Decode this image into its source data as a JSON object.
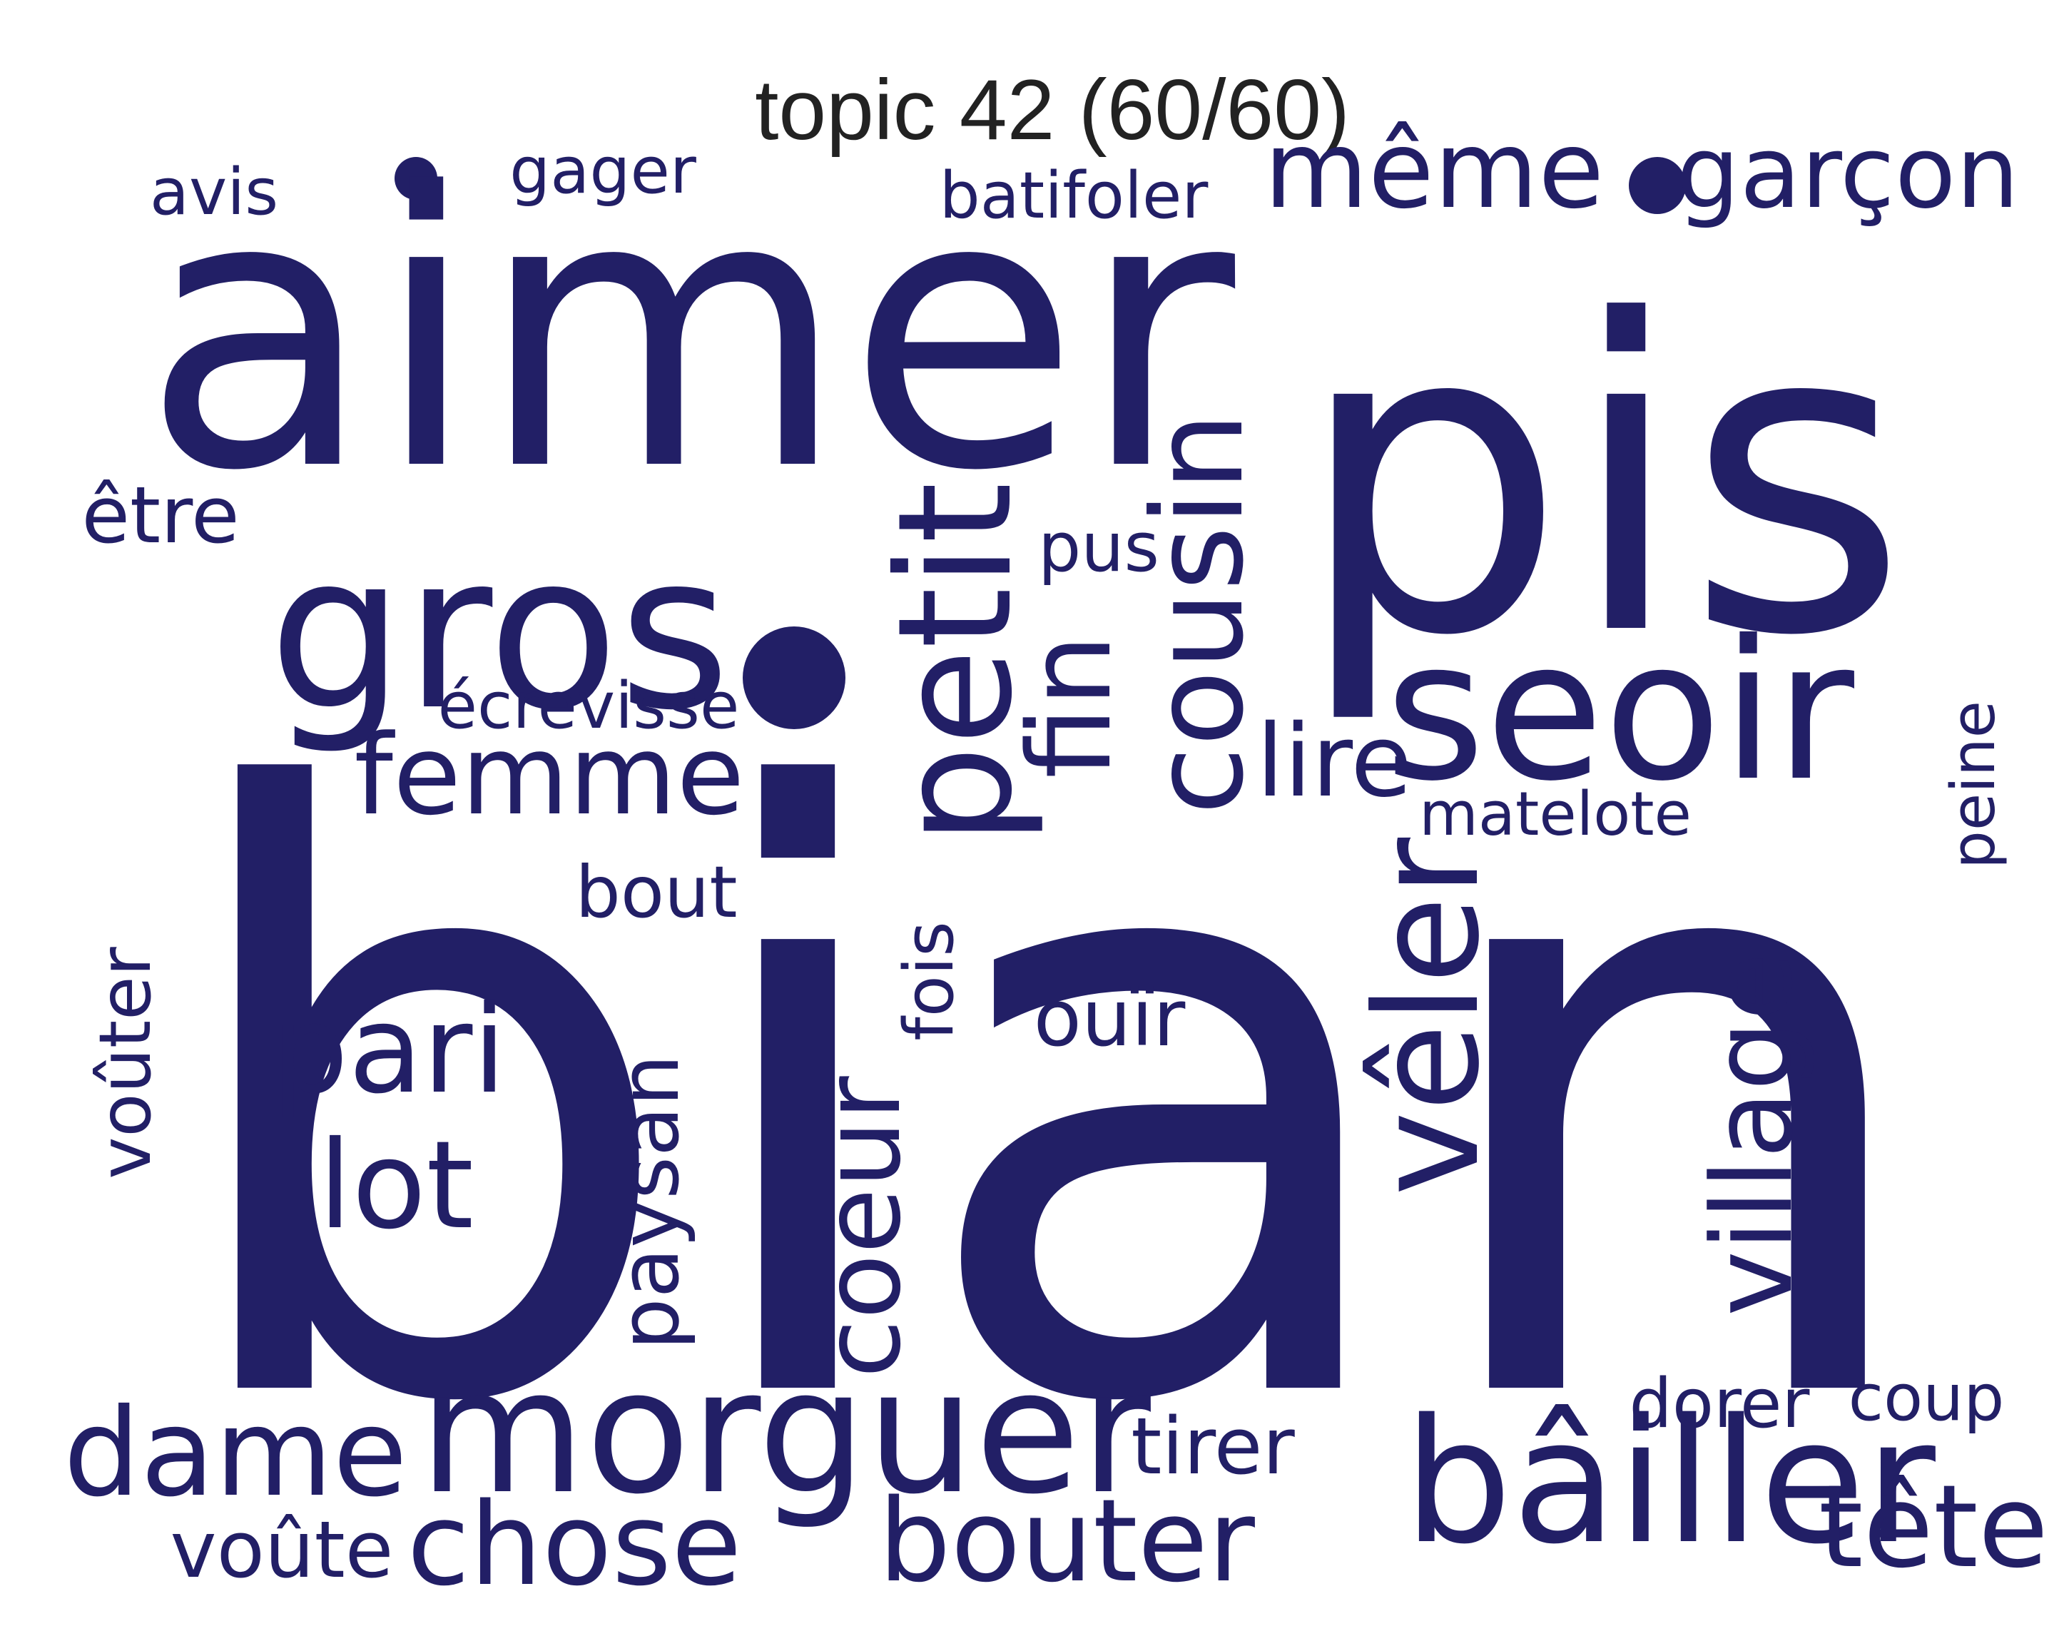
{
  "title": "topic 42 (60/60)",
  "word_color": "#221f66",
  "words": {
    "bian": "bian",
    "aimer": "aimer",
    "pis": "pis",
    "gros": "gros",
    "seoir": "seoir",
    "morguer": "morguer",
    "bailler": "bâiller",
    "petit": "petit",
    "cousin": "cousin",
    "veler": "vêler",
    "femme": "femme",
    "meme": "même",
    "garcon": "garçon",
    "village": "village",
    "pari": "pari",
    "lot": "lot",
    "dame": "dame",
    "chose": "chose",
    "bouter": "bouter",
    "tete": "tête",
    "coeur": "coeur",
    "paysan": "paysan",
    "fin": "fin",
    "lire": "lire",
    "etre": "être",
    "batifoler": "batifoler",
    "gager": "gager",
    "avis": "avis",
    "ecrevisse": "écrevisse",
    "pus": "pus",
    "matelote": "matelote",
    "peine": "peine",
    "bout": "bout",
    "fois": "fois",
    "ouir": "ouïr",
    "vouter": "voûter",
    "tirer": "tirer",
    "dorer": "dorer",
    "coup": "coup",
    "voute": "voûte"
  }
}
